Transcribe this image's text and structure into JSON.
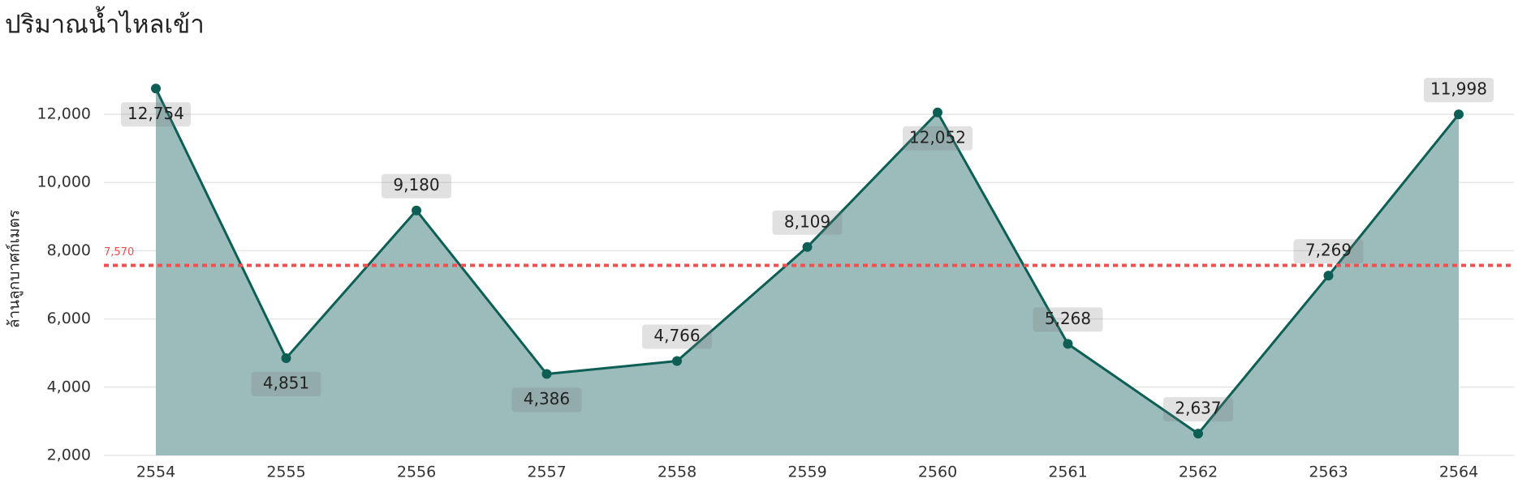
{
  "chart_data": {
    "type": "area",
    "title": "ปริมาณน้ำไหลเข้า",
    "y_label": "ล้านลูกบาศก์เมตร",
    "categories": [
      "2554",
      "2555",
      "2556",
      "2557",
      "2558",
      "2559",
      "2560",
      "2561",
      "2562",
      "2563",
      "2564"
    ],
    "values": [
      12754,
      4851,
      9180,
      4386,
      4766,
      8109,
      12052,
      5268,
      2637,
      7269,
      11998
    ],
    "value_labels": [
      "12,754",
      "4,851",
      "9,180",
      "4,386",
      "4,766",
      "8,109",
      "12,052",
      "5,268",
      "2,637",
      "7,269",
      "11,998"
    ],
    "line_color": "#0d5f56",
    "fill_color": "#9bbcba",
    "reference_line": {
      "value": 7570,
      "label": "7,570",
      "color": "#f0504f"
    },
    "ylim": [
      2000,
      13500
    ],
    "yticks": [
      {
        "value": 2000,
        "label": "2,000"
      },
      {
        "value": 4000,
        "label": "4,000"
      },
      {
        "value": 6000,
        "label": "6,000"
      },
      {
        "value": 8000,
        "label": "8,000"
      },
      {
        "value": 10000,
        "label": "10,000"
      },
      {
        "value": 12000,
        "label": "12,000"
      }
    ],
    "grid": true
  }
}
